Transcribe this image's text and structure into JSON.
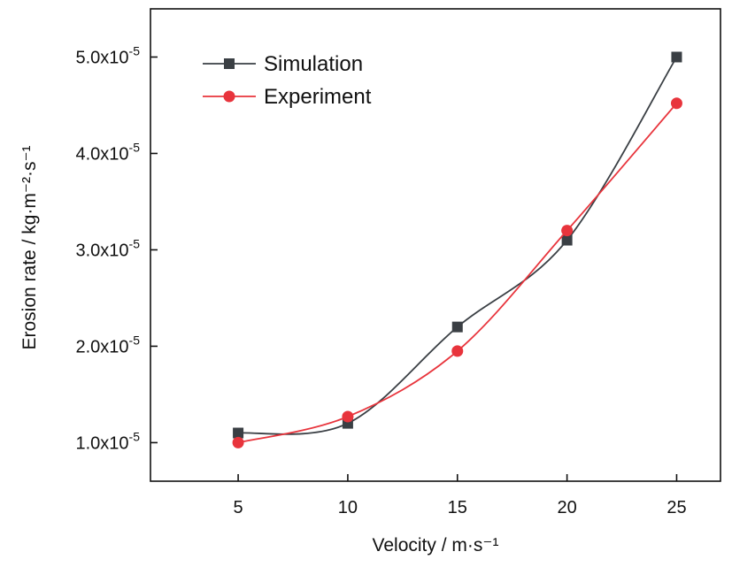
{
  "chart_data": {
    "type": "line",
    "xlabel": "Velocity / m·s⁻¹",
    "ylabel": "Erosion rate / kg·m⁻²·s⁻¹",
    "x": [
      5,
      10,
      15,
      20,
      25
    ],
    "xlim": [
      1,
      27
    ],
    "ylim": [
      6e-06,
      5.5e-05
    ],
    "x_ticks": [
      5,
      10,
      15,
      20,
      25
    ],
    "y_ticks": [
      1e-05,
      2e-05,
      3e-05,
      4e-05,
      5e-05
    ],
    "x_tick_labels": [
      "5",
      "10",
      "15",
      "20",
      "25"
    ],
    "y_tick_labels": [
      {
        "base": "1.0x10",
        "exp": "-5"
      },
      {
        "base": "2.0x10",
        "exp": "-5"
      },
      {
        "base": "3.0x10",
        "exp": "-5"
      },
      {
        "base": "4.0x10",
        "exp": "-5"
      },
      {
        "base": "5.0x10",
        "exp": "-5"
      }
    ],
    "grid": false,
    "legend_position": "top-left",
    "series": [
      {
        "name": "Simulation",
        "color": "#3a3f44",
        "marker": "square",
        "values": [
          1.1e-05,
          1.2e-05,
          2.2e-05,
          3.1e-05,
          5e-05
        ]
      },
      {
        "name": "Experiment",
        "color": "#e8343c",
        "marker": "circle",
        "values": [
          1e-05,
          1.27e-05,
          1.95e-05,
          3.2e-05,
          4.52e-05
        ]
      }
    ]
  }
}
